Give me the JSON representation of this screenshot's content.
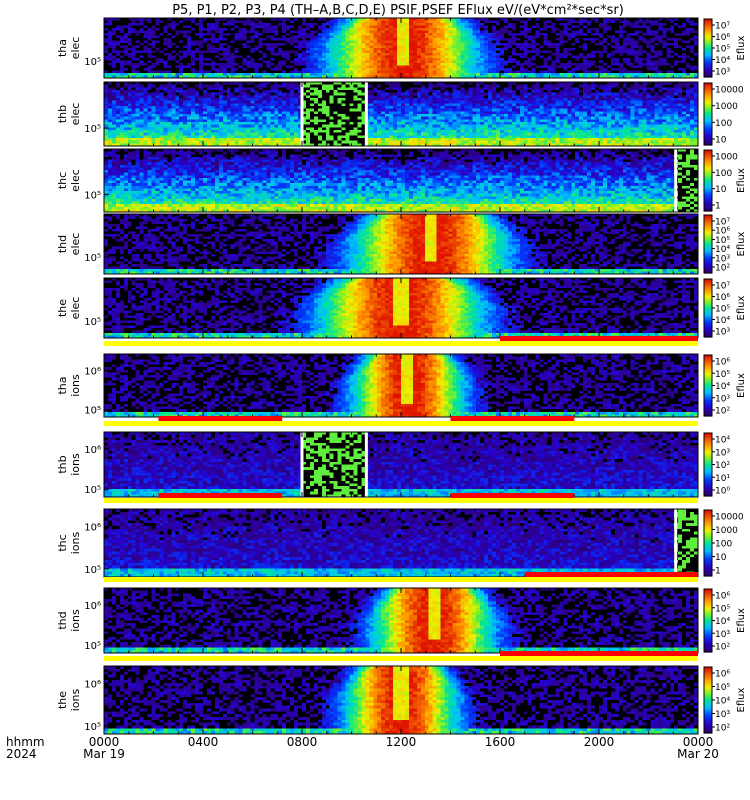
{
  "title": "P5, P1, P2, P3, P4  (TH–A,B,C,D,E) PSIF,PSEF EFlux eV/(eV*cm²*sec*sr)",
  "x_axis": {
    "row_label_1": "hhmm",
    "row_label_2": "2024",
    "ticks": [
      {
        "t": 0,
        "time": "0000",
        "date": "Mar 19"
      },
      {
        "t": 4,
        "time": "0400",
        "date": ""
      },
      {
        "t": 8,
        "time": "0800",
        "date": ""
      },
      {
        "t": 12,
        "time": "1200",
        "date": ""
      },
      {
        "t": 16,
        "time": "1600",
        "date": ""
      },
      {
        "t": 20,
        "time": "2000",
        "date": ""
      },
      {
        "t": 24,
        "time": "0000",
        "date": "Mar 20"
      }
    ]
  },
  "chart_data": {
    "type": "heatmap",
    "x_unit": "hours since 2024-03-19 00:00 UT",
    "xlim": [
      0,
      24
    ],
    "colorbar_label": "Eflux",
    "panels": [
      {
        "probe": "tha",
        "species": "elec",
        "ylabel": [
          "tha",
          "elec"
        ],
        "y_ticks": [
          "10⁵"
        ],
        "cb_ticks": [
          "10⁷",
          "10⁶",
          "10⁵",
          "10⁴",
          "10³"
        ],
        "cb_label": "Eflux",
        "gap": null,
        "pattern": "bell",
        "bell": {
          "center": 12.1,
          "width": 3.4,
          "peak": 1.0
        }
      },
      {
        "probe": "thb",
        "species": "elec",
        "ylabel": [
          "thb",
          "elec"
        ],
        "y_ticks": [
          "10⁵"
        ],
        "cb_ticks": [
          "10000",
          "1000",
          "100",
          "10"
        ],
        "cb_label": "",
        "gap": [
          8.0,
          10.6
        ],
        "pattern": "flat",
        "bell": null
      },
      {
        "probe": "thc",
        "species": "elec",
        "ylabel": [
          "thc",
          "elec"
        ],
        "y_ticks": [
          "10⁵"
        ],
        "cb_ticks": [
          "1000",
          "100",
          "10",
          "1"
        ],
        "cb_label": "Eflux",
        "gap": [
          23.1,
          24.0
        ],
        "pattern": "flat",
        "bell": null
      },
      {
        "probe": "thd",
        "species": "elec",
        "ylabel": [
          "thd",
          "elec"
        ],
        "y_ticks": [
          "10⁵"
        ],
        "cb_ticks": [
          "10⁷",
          "10⁶",
          "10⁵",
          "10⁴",
          "10³",
          "10²"
        ],
        "cb_label": "Eflux",
        "gap": null,
        "pattern": "bell",
        "bell": {
          "center": 13.2,
          "width": 3.6,
          "peak": 1.0
        }
      },
      {
        "probe": "the",
        "species": "elec",
        "ylabel": [
          "the",
          "elec"
        ],
        "y_ticks": [
          "10⁵"
        ],
        "cb_ticks": [
          "10⁷",
          "10⁶",
          "10⁵",
          "10⁴",
          "10³"
        ],
        "cb_label": "Eflux",
        "gap": null,
        "pattern": "bell",
        "bell": {
          "center": 12.0,
          "width": 3.8,
          "peak": 1.0
        }
      },
      {
        "probe": "tha",
        "species": "ions",
        "ylabel": [
          "tha",
          "ions"
        ],
        "y_ticks": [
          "10⁵",
          "10⁶"
        ],
        "cb_ticks": [
          "10⁶",
          "10⁵",
          "10⁴",
          "10³",
          "10²"
        ],
        "cb_label": "Eflux",
        "gap": null,
        "pattern": "bell",
        "bell": {
          "center": 12.3,
          "width": 2.6,
          "peak": 1.0
        }
      },
      {
        "probe": "thb",
        "species": "ions",
        "ylabel": [
          "thb",
          "ions"
        ],
        "y_ticks": [
          "10⁵",
          "10⁶"
        ],
        "cb_ticks": [
          "10⁴",
          "10³",
          "10²",
          "10¹",
          "10⁰"
        ],
        "cb_label": "",
        "gap": [
          8.0,
          10.6
        ],
        "pattern": "noise",
        "bell": null
      },
      {
        "probe": "thc",
        "species": "ions",
        "ylabel": [
          "thc",
          "ions"
        ],
        "y_ticks": [
          "10⁵",
          "10⁶"
        ],
        "cb_ticks": [
          "10000",
          "1000",
          "100",
          "10",
          "1"
        ],
        "cb_label": "",
        "gap": [
          23.1,
          24.0
        ],
        "pattern": "noise",
        "bell": null
      },
      {
        "probe": "thd",
        "species": "ions",
        "ylabel": [
          "thd",
          "ions"
        ],
        "y_ticks": [
          "10⁵",
          "10⁶"
        ],
        "cb_ticks": [
          "10⁶",
          "10⁵",
          "10⁴",
          "10³",
          "10²"
        ],
        "cb_label": "Eflux",
        "gap": null,
        "pattern": "bell",
        "bell": {
          "center": 13.3,
          "width": 2.8,
          "peak": 1.0
        }
      },
      {
        "probe": "the",
        "species": "ions",
        "ylabel": [
          "the",
          "ions"
        ],
        "y_ticks": [
          "10⁵",
          "10⁶"
        ],
        "cb_ticks": [
          "10⁶",
          "10⁵",
          "10⁴",
          "10³",
          "10²"
        ],
        "cb_label": "Eflux",
        "gap": null,
        "pattern": "bell",
        "bell": {
          "center": 12.0,
          "width": 2.6,
          "peak": 1.0
        }
      }
    ],
    "mode_bars": [
      {
        "after_panel": 4,
        "red_segments": [
          [
            16.0,
            24.0
          ]
        ]
      },
      {
        "after_panel": 5,
        "red_segments": [
          [
            2.2,
            7.2
          ],
          [
            14.0,
            19.0
          ]
        ]
      },
      {
        "after_panel": 6,
        "red_segments": [
          [
            2.2,
            7.2
          ],
          [
            14.0,
            19.0
          ]
        ]
      },
      {
        "after_panel": 7,
        "red_segments": [
          [
            17.0,
            24.0
          ]
        ]
      },
      {
        "after_panel": 8,
        "red_segments": [
          [
            16.0,
            24.0
          ]
        ]
      }
    ]
  }
}
